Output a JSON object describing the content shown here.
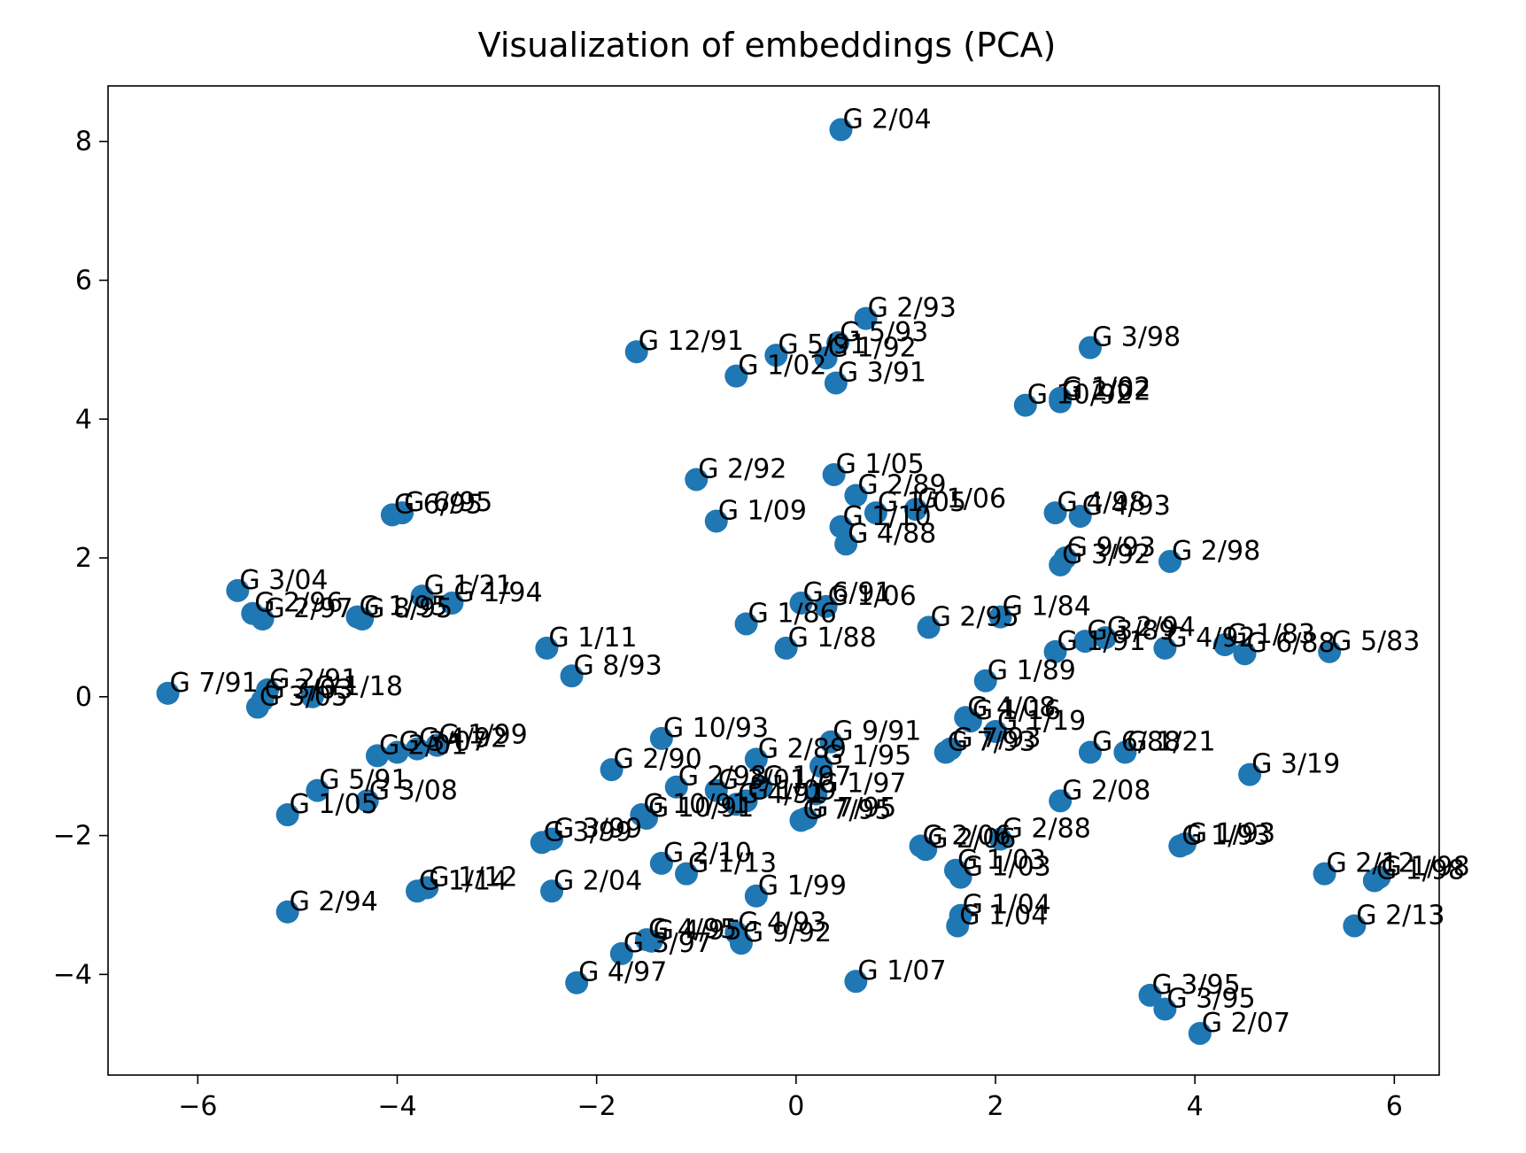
{
  "chart_data": {
    "type": "scatter",
    "title": "Visualization of embeddings (PCA)",
    "xlabel": "",
    "ylabel": "",
    "xlim": [
      -6.9,
      6.45
    ],
    "ylim": [
      -5.45,
      8.8
    ],
    "xticks": [
      -6,
      -4,
      -2,
      0,
      2,
      4,
      6
    ],
    "yticks": [
      -4,
      -2,
      0,
      2,
      4,
      6,
      8
    ],
    "xtick_labels": [
      "−6",
      "−4",
      "−2",
      "0",
      "2",
      "4",
      "6"
    ],
    "ytick_labels": [
      "−4",
      "−2",
      "0",
      "2",
      "4",
      "6",
      "8"
    ],
    "grid": false,
    "marker_color": "#1f77b4",
    "points": [
      {
        "x": 0.45,
        "y": 8.17,
        "label": "G 2/04"
      },
      {
        "x": 0.7,
        "y": 5.45,
        "label": "G 2/93"
      },
      {
        "x": 0.42,
        "y": 5.1,
        "label": "G 5/93"
      },
      {
        "x": -1.6,
        "y": 4.97,
        "label": "G 12/91"
      },
      {
        "x": -0.2,
        "y": 4.92,
        "label": "G 5/91"
      },
      {
        "x": 0.3,
        "y": 4.88,
        "label": "G 1/92"
      },
      {
        "x": -0.6,
        "y": 4.62,
        "label": "G 1/02"
      },
      {
        "x": 0.4,
        "y": 4.52,
        "label": "G 3/91"
      },
      {
        "x": 2.95,
        "y": 5.03,
        "label": "G 3/98"
      },
      {
        "x": 2.3,
        "y": 4.2,
        "label": "G 10/92"
      },
      {
        "x": 2.65,
        "y": 4.25,
        "label": "G 2/02"
      },
      {
        "x": 2.65,
        "y": 4.3,
        "label": "G 1/02"
      },
      {
        "x": -1.0,
        "y": 3.13,
        "label": "G 2/92"
      },
      {
        "x": 0.38,
        "y": 3.2,
        "label": "G 1/05"
      },
      {
        "x": 0.6,
        "y": 2.9,
        "label": "G 2/89"
      },
      {
        "x": 1.2,
        "y": 2.7,
        "label": "G 1/06"
      },
      {
        "x": 0.8,
        "y": 2.65,
        "label": "G 1/05"
      },
      {
        "x": -0.8,
        "y": 2.53,
        "label": "G 1/09"
      },
      {
        "x": 0.45,
        "y": 2.45,
        "label": "G 1/10"
      },
      {
        "x": 0.5,
        "y": 2.2,
        "label": "G 4/88"
      },
      {
        "x": 2.6,
        "y": 2.65,
        "label": "G 4/98"
      },
      {
        "x": 2.85,
        "y": 2.6,
        "label": "G 4/93"
      },
      {
        "x": 2.7,
        "y": 2.0,
        "label": "G 9/93"
      },
      {
        "x": 2.65,
        "y": 1.9,
        "label": "G 3/92"
      },
      {
        "x": 3.75,
        "y": 1.95,
        "label": "G 2/98"
      },
      {
        "x": -4.05,
        "y": 2.62,
        "label": "G 6/95"
      },
      {
        "x": -3.95,
        "y": 2.65,
        "label": "G 6/95"
      },
      {
        "x": -5.6,
        "y": 1.53,
        "label": "G 3/04"
      },
      {
        "x": -5.45,
        "y": 1.2,
        "label": "G 2/96"
      },
      {
        "x": -5.35,
        "y": 1.12,
        "label": "G 2/97"
      },
      {
        "x": -4.35,
        "y": 1.12,
        "label": "G 8/95"
      },
      {
        "x": -4.4,
        "y": 1.15,
        "label": "G 1/95"
      },
      {
        "x": -3.75,
        "y": 1.45,
        "label": "G 1/21"
      },
      {
        "x": -3.45,
        "y": 1.35,
        "label": "G 1/94"
      },
      {
        "x": -2.5,
        "y": 0.7,
        "label": "G 1/11"
      },
      {
        "x": -2.25,
        "y": 0.3,
        "label": "G 8/93"
      },
      {
        "x": -0.5,
        "y": 1.05,
        "label": "G 1/86"
      },
      {
        "x": 0.05,
        "y": 1.35,
        "label": "G 6/91"
      },
      {
        "x": 0.3,
        "y": 1.3,
        "label": "G 1/06"
      },
      {
        "x": -0.1,
        "y": 0.7,
        "label": "G 1/88"
      },
      {
        "x": 1.33,
        "y": 1.0,
        "label": "G 2/95"
      },
      {
        "x": 2.05,
        "y": 1.15,
        "label": "G 1/84"
      },
      {
        "x": 2.6,
        "y": 0.65,
        "label": "G 1/91"
      },
      {
        "x": 2.9,
        "y": 0.8,
        "label": "G 3/89"
      },
      {
        "x": 3.1,
        "y": 0.85,
        "label": "G 2/94"
      },
      {
        "x": 3.7,
        "y": 0.7,
        "label": "G 4/92"
      },
      {
        "x": 4.3,
        "y": 0.75,
        "label": "G 1/83"
      },
      {
        "x": 4.5,
        "y": 0.62,
        "label": "G 6/88"
      },
      {
        "x": 5.35,
        "y": 0.65,
        "label": "G 5/83"
      },
      {
        "x": 1.9,
        "y": 0.23,
        "label": "G 1/89"
      },
      {
        "x": -6.3,
        "y": 0.05,
        "label": "G 7/91"
      },
      {
        "x": -5.3,
        "y": 0.1,
        "label": "G 2/91"
      },
      {
        "x": -5.35,
        "y": -0.05,
        "label": "G 3/03"
      },
      {
        "x": -4.85,
        "y": 0.0,
        "label": "G 1/18"
      },
      {
        "x": -5.4,
        "y": -0.15,
        "label": "G 3/05"
      },
      {
        "x": 1.7,
        "y": -0.3,
        "label": "G 4/08"
      },
      {
        "x": 1.75,
        "y": -0.35,
        "label": "G 1/16"
      },
      {
        "x": 2.0,
        "y": -0.5,
        "label": "G 1/19"
      },
      {
        "x": -1.35,
        "y": -0.6,
        "label": "G 10/93"
      },
      {
        "x": 0.35,
        "y": -0.65,
        "label": "G 9/91"
      },
      {
        "x": -4.2,
        "y": -0.85,
        "label": "G 2/01"
      },
      {
        "x": -4.0,
        "y": -0.8,
        "label": "G 3/07"
      },
      {
        "x": -3.8,
        "y": -0.75,
        "label": "G 4/92"
      },
      {
        "x": -3.6,
        "y": -0.7,
        "label": "G 1/99"
      },
      {
        "x": 1.5,
        "y": -0.8,
        "label": "G 7/93"
      },
      {
        "x": 1.55,
        "y": -0.75,
        "label": "G 7/93"
      },
      {
        "x": 2.95,
        "y": -0.8,
        "label": "G 6/88"
      },
      {
        "x": 3.3,
        "y": -0.8,
        "label": "G 1/21"
      },
      {
        "x": -1.85,
        "y": -1.05,
        "label": "G 2/90"
      },
      {
        "x": -0.4,
        "y": -0.9,
        "label": "G 2/89"
      },
      {
        "x": 0.25,
        "y": -1.0,
        "label": "G 1/95"
      },
      {
        "x": 4.55,
        "y": -1.12,
        "label": "G 3/19"
      },
      {
        "x": -4.8,
        "y": -1.35,
        "label": "G 5/91"
      },
      {
        "x": -4.3,
        "y": -1.5,
        "label": "G 3/08"
      },
      {
        "x": -5.1,
        "y": -1.7,
        "label": "G 1/05"
      },
      {
        "x": -1.2,
        "y": -1.3,
        "label": "G 2/98"
      },
      {
        "x": -0.8,
        "y": -1.35,
        "label": "G 3/01"
      },
      {
        "x": -0.35,
        "y": -1.3,
        "label": "G 1/97"
      },
      {
        "x": 0.2,
        "y": -1.4,
        "label": "G 1/97"
      },
      {
        "x": -0.5,
        "y": -1.5,
        "label": "G 1/09"
      },
      {
        "x": -0.6,
        "y": -1.55,
        "label": "G 4/91"
      },
      {
        "x": 2.65,
        "y": -1.5,
        "label": "G 2/08"
      },
      {
        "x": -1.55,
        "y": -1.7,
        "label": "G 10/91"
      },
      {
        "x": -1.5,
        "y": -1.75,
        "label": "G 10/91"
      },
      {
        "x": 0.05,
        "y": -1.78,
        "label": "G 7/95"
      },
      {
        "x": 0.1,
        "y": -1.75,
        "label": "G 7/95"
      },
      {
        "x": -2.55,
        "y": -2.1,
        "label": "G 3/99"
      },
      {
        "x": -2.45,
        "y": -2.05,
        "label": "G 3/99"
      },
      {
        "x": 1.25,
        "y": -2.15,
        "label": "G 2/06"
      },
      {
        "x": 1.3,
        "y": -2.2,
        "label": "G 2/06"
      },
      {
        "x": 2.05,
        "y": -2.05,
        "label": "G 2/88"
      },
      {
        "x": 3.85,
        "y": -2.15,
        "label": "G 1/93"
      },
      {
        "x": 3.9,
        "y": -2.12,
        "label": "G 1/93"
      },
      {
        "x": -1.35,
        "y": -2.4,
        "label": "G 2/10"
      },
      {
        "x": -1.1,
        "y": -2.55,
        "label": "G 1/13"
      },
      {
        "x": 1.6,
        "y": -2.5,
        "label": "G 1/03"
      },
      {
        "x": 1.65,
        "y": -2.6,
        "label": "G 1/03"
      },
      {
        "x": -3.8,
        "y": -2.8,
        "label": "G 1/14"
      },
      {
        "x": -3.7,
        "y": -2.75,
        "label": "G 1/12"
      },
      {
        "x": -2.45,
        "y": -2.8,
        "label": "G 2/04"
      },
      {
        "x": -0.4,
        "y": -2.87,
        "label": "G 1/99"
      },
      {
        "x": 5.3,
        "y": -2.55,
        "label": "G 2/12"
      },
      {
        "x": 5.85,
        "y": -2.6,
        "label": "G 1/98"
      },
      {
        "x": 5.8,
        "y": -2.65,
        "label": "G 1/98"
      },
      {
        "x": -5.1,
        "y": -3.1,
        "label": "G 2/94"
      },
      {
        "x": 1.65,
        "y": -3.15,
        "label": "G 1/04"
      },
      {
        "x": 1.62,
        "y": -3.3,
        "label": "G 1/04"
      },
      {
        "x": 5.6,
        "y": -3.3,
        "label": "G 2/13"
      },
      {
        "x": -0.6,
        "y": -3.4,
        "label": "G 4/93"
      },
      {
        "x": -1.5,
        "y": -3.5,
        "label": "G 4/95"
      },
      {
        "x": -1.45,
        "y": -3.52,
        "label": "G 4/95"
      },
      {
        "x": -0.55,
        "y": -3.55,
        "label": "G 9/92"
      },
      {
        "x": -1.75,
        "y": -3.7,
        "label": "G 3/97"
      },
      {
        "x": -2.2,
        "y": -4.12,
        "label": "G 4/97"
      },
      {
        "x": 0.6,
        "y": -4.1,
        "label": "G 1/07"
      },
      {
        "x": 3.55,
        "y": -4.3,
        "label": "G 3/95"
      },
      {
        "x": 3.7,
        "y": -4.5,
        "label": "G 3/95"
      },
      {
        "x": 4.05,
        "y": -4.85,
        "label": "G 2/07"
      }
    ]
  }
}
